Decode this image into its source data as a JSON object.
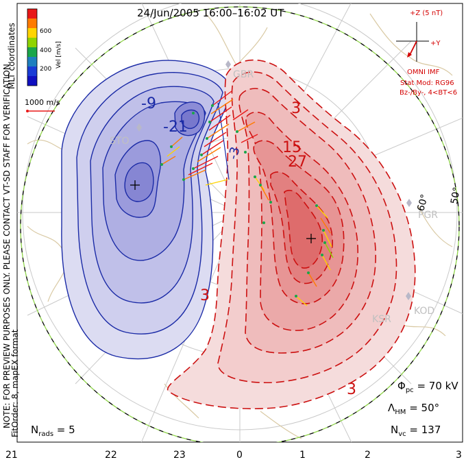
{
  "title": "24/Jun/2005 16:00–16:02 UT",
  "colorbar": {
    "label": "Vel [m/s]",
    "ticks": [
      "600",
      "400",
      "200"
    ],
    "colors": [
      "#e81818",
      "#ff7b00",
      "#ffd400",
      "#8fd400",
      "#1aa64a",
      "#1f7fbf",
      "#1a3cd6",
      "#1010c0"
    ]
  },
  "coords_label": "MLT coordinates",
  "vector_scale": "1000 m/s",
  "imf": {
    "z_label": "+Z (5 nT)",
    "y_label": "+Y",
    "source": "OMNI IMF",
    "model": "Stat Mod: RG96",
    "condition": "Bz-/By-, 4<BT<6"
  },
  "stations": [
    "GBR",
    "STO",
    "PGR",
    "KOD",
    "KSR"
  ],
  "lat_labels": [
    "60°",
    "50°"
  ],
  "contour_labels": {
    "neg": [
      "-9",
      "-21"
    ],
    "pos": [
      "3",
      "15",
      "27",
      "3",
      "3"
    ],
    "mid": [
      "-3"
    ]
  },
  "stats": {
    "phi": "Φ",
    "phi_sub": "pc",
    "phi_val": " = 70 kV",
    "lambda": "Λ",
    "lambda_sub": "HM",
    "lambda_val": " = 50°",
    "nvc": "N",
    "nvc_sub": "vc",
    "nvc_val": " = 137",
    "nrads": "N",
    "nrads_sub": "rads",
    "nrads_val": " = 5"
  },
  "side_note": "NOTE: FOR PREVIEW PURPOSES ONLY. PLEASE CONTACT VT-SD STAFF FOR VERIFICATION.",
  "fit_label": "FitOrder: 8, mapEX format",
  "x_axis_ticks": [
    "21",
    "22",
    "23",
    "0",
    "1",
    "2",
    "3"
  ]
}
